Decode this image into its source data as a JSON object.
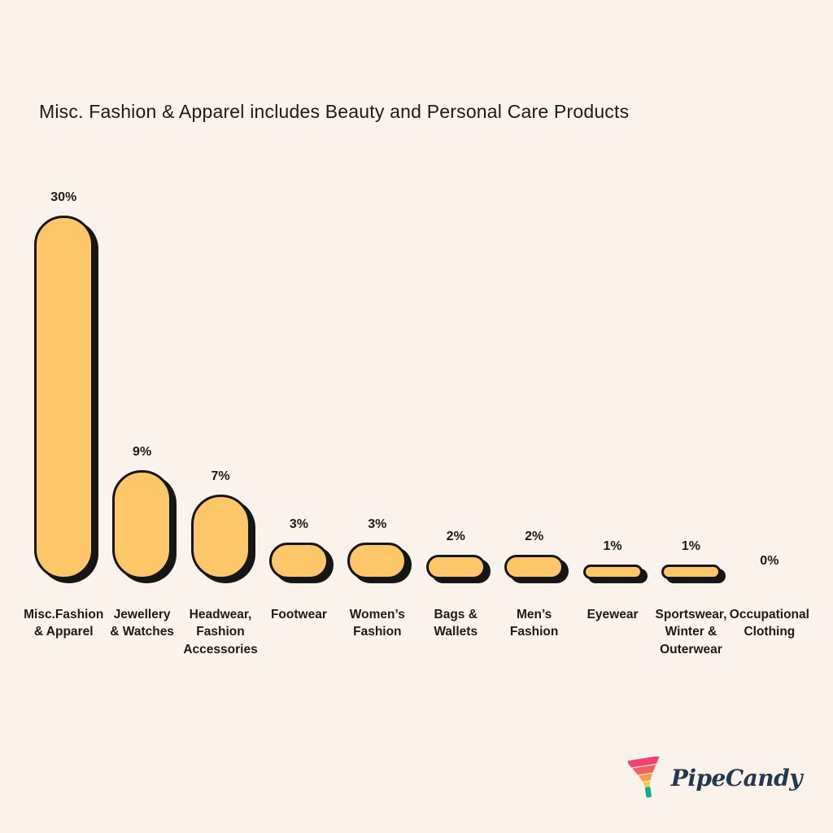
{
  "chart_data": {
    "type": "bar",
    "title": "Misc. Fashion & Apparel includes Beauty and Personal Care Products",
    "categories": [
      "Misc.Fashion & Apparel",
      "Jewellery & Watches",
      "Headwear, Fashion Accessories",
      "Footwear",
      "Women's Fashion",
      "Bags & Wallets",
      "Men's Fashion",
      "Eyewear",
      "Sportswear, Winter & Outerwear",
      "Occupational Clothing"
    ],
    "tick_labels": [
      "Misc.Fashion\n& Apparel",
      "Jewellery\n& Watches",
      "Headwear,\nFashion\nAccessories",
      "Footwear",
      "Women’s\nFashion",
      "Bags &\nWallets",
      "Men’s\nFashion",
      "Eyewear",
      "Sportswear,\nWinter &\nOuterwear",
      "Occupational\nClothing"
    ],
    "values": [
      30,
      9,
      7,
      3,
      3,
      2,
      2,
      1,
      1,
      0
    ],
    "value_labels": [
      "30%",
      "9%",
      "7%",
      "3%",
      "3%",
      "2%",
      "2%",
      "1%",
      "1%",
      "0%"
    ],
    "xlabel": "",
    "ylabel": "",
    "ylim": [
      0,
      32
    ],
    "grid": false,
    "legend": false
  },
  "colors": {
    "background": "#FCF2EC",
    "bar_fill": "#FDC669",
    "bar_outline": "#161616",
    "text": "#1B1B1B",
    "logo_text": "#24384E",
    "funnel_stripes": [
      "#EF4377",
      "#F2625B",
      "#F8994C",
      "#F8C84C",
      "#12A98C"
    ]
  },
  "logo": {
    "brand": "PipeCandy",
    "icon": "funnel-icon"
  }
}
